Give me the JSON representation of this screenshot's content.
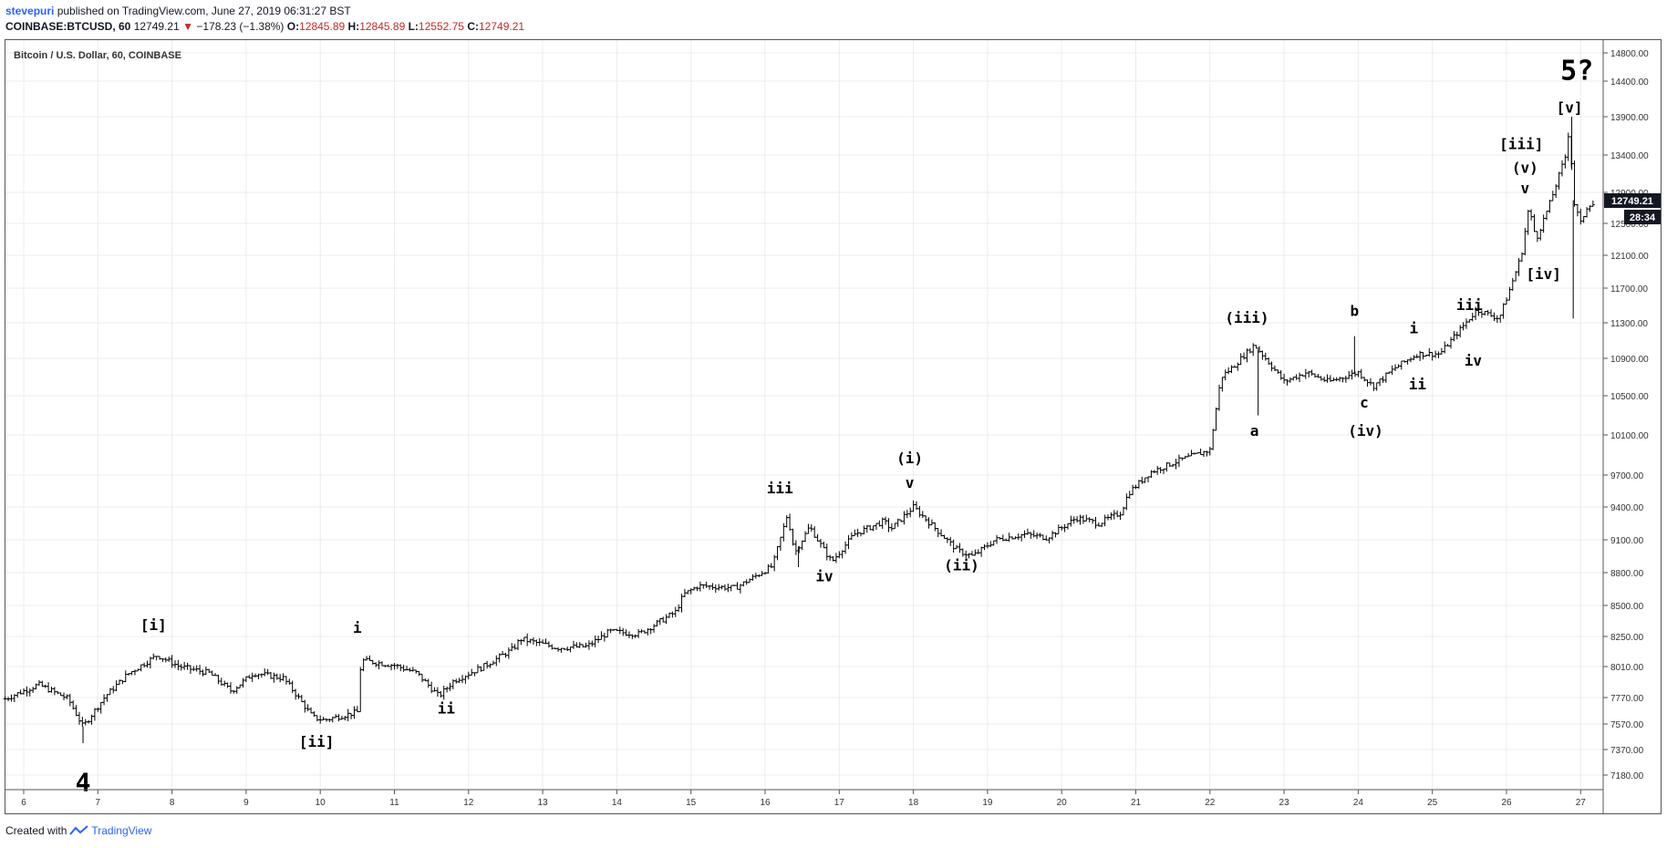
{
  "header": {
    "author": "stevepuri",
    "published": "published on TradingView.com, June 27, 2019 06:31:27 BST",
    "symbol": "COINBASE:BTCUSD, 60",
    "last": "12749.21",
    "change": "−178.23 (−1.38%)",
    "open_label": "O:",
    "open": "12845.89",
    "high_label": "H:",
    "high": "12845.89",
    "low_label": "L:",
    "low": "12552.75",
    "close_label": "C:",
    "close": "12749.21"
  },
  "footer": {
    "created_with": "Created with",
    "brand": "TradingView"
  },
  "colors": {
    "up_down_arrow": "#c62828",
    "bars": "#000000",
    "grid": "#e6e6e6",
    "accent": "#2962ff"
  },
  "chart_data": {
    "type": "ohlc",
    "title": "Bitcoin / U.S. Dollar, 60, COINBASE",
    "price_tag": "12749.21",
    "countdown": "28:34",
    "y_ticks": [
      7180,
      7370,
      7570,
      7770,
      8010,
      8250,
      8500,
      8800,
      9100,
      9400,
      9700,
      10100,
      10500,
      10900,
      11300,
      11700,
      12100,
      12500,
      12900,
      13400,
      13900,
      14400,
      14800
    ],
    "y_tick_labels": [
      "7180.00",
      "7370.00",
      "7570.00",
      "7770.00",
      "8010.00",
      "8250.00",
      "8500.00",
      "8800.00",
      "9100.00",
      "9400.00",
      "9700.00",
      "10100.00",
      "10500.00",
      "10900.00",
      "11300.00",
      "11700.00",
      "12100.00",
      "12500.00",
      "12900.00",
      "13400.00",
      "13900.00",
      "14400.00",
      "14800.00"
    ],
    "x_ticks": [
      6,
      7,
      8,
      9,
      10,
      11,
      12,
      13,
      14,
      15,
      16,
      17,
      18,
      19,
      20,
      21,
      22,
      23,
      24,
      25,
      26,
      27
    ],
    "path": [
      [
        5.75,
        7760
      ],
      [
        6.2,
        7870
      ],
      [
        6.6,
        7760
      ],
      [
        6.8,
        7550
      ],
      [
        7.1,
        7780
      ],
      [
        7.4,
        7950
      ],
      [
        7.8,
        8100
      ],
      [
        8.1,
        8010
      ],
      [
        8.5,
        7960
      ],
      [
        8.8,
        7820
      ],
      [
        9.1,
        7960
      ],
      [
        9.5,
        7920
      ],
      [
        9.6,
        7850
      ],
      [
        9.9,
        7620
      ],
      [
        10.05,
        7600
      ],
      [
        10.5,
        7660
      ],
      [
        10.55,
        8060
      ],
      [
        11.0,
        8020
      ],
      [
        11.3,
        7960
      ],
      [
        11.6,
        7780
      ],
      [
        11.8,
        7900
      ],
      [
        12.2,
        8010
      ],
      [
        12.6,
        8150
      ],
      [
        12.7,
        8230
      ],
      [
        13.2,
        8160
      ],
      [
        13.6,
        8170
      ],
      [
        13.9,
        8290
      ],
      [
        14.3,
        8270
      ],
      [
        14.8,
        8450
      ],
      [
        14.9,
        8600
      ],
      [
        15.1,
        8680
      ],
      [
        15.6,
        8660
      ],
      [
        16.1,
        8860
      ],
      [
        16.3,
        9330
      ],
      [
        16.4,
        8980
      ],
      [
        16.6,
        9220
      ],
      [
        16.8,
        9000
      ],
      [
        16.9,
        8900
      ],
      [
        17.2,
        9150
      ],
      [
        17.6,
        9270
      ],
      [
        17.7,
        9200
      ],
      [
        18.0,
        9400
      ],
      [
        18.3,
        9200
      ],
      [
        18.6,
        9000
      ],
      [
        18.8,
        8950
      ],
      [
        19.1,
        9100
      ],
      [
        19.5,
        9150
      ],
      [
        19.8,
        9120
      ],
      [
        20.2,
        9300
      ],
      [
        20.5,
        9250
      ],
      [
        20.8,
        9350
      ],
      [
        20.9,
        9530
      ],
      [
        21.2,
        9730
      ],
      [
        21.6,
        9850
      ],
      [
        22.0,
        9950
      ],
      [
        22.15,
        10700
      ],
      [
        22.3,
        10800
      ],
      [
        22.6,
        11050
      ],
      [
        22.75,
        10900
      ],
      [
        23.0,
        10650
      ],
      [
        23.3,
        10750
      ],
      [
        23.6,
        10650
      ],
      [
        24.0,
        10750
      ],
      [
        24.2,
        10600
      ],
      [
        24.5,
        10800
      ],
      [
        24.8,
        10950
      ],
      [
        25.1,
        10950
      ],
      [
        25.5,
        11350
      ],
      [
        25.6,
        11450
      ],
      [
        25.9,
        11350
      ],
      [
        26.05,
        11700
      ],
      [
        26.2,
        12100
      ],
      [
        26.3,
        12700
      ],
      [
        26.4,
        12300
      ],
      [
        26.6,
        12800
      ],
      [
        26.8,
        13400
      ],
      [
        26.85,
        13800
      ],
      [
        26.9,
        12800
      ],
      [
        27.0,
        12500
      ],
      [
        27.1,
        12750
      ],
      [
        27.2,
        12749
      ]
    ],
    "wicks": [
      [
        6.8,
        7420
      ],
      [
        16.45,
        8850
      ],
      [
        22.65,
        10300
      ],
      [
        23.95,
        11150
      ],
      [
        26.9,
        11350
      ],
      [
        26.88,
        13900
      ]
    ],
    "annotations": [
      {
        "text": "4",
        "x": 6.8,
        "price": 7060,
        "size": 28,
        "bold": true
      },
      {
        "text": "[i]",
        "x": 7.75,
        "price": 8300
      },
      {
        "text": "[ii]",
        "x": 9.95,
        "price": 7390
      },
      {
        "text": "i",
        "x": 10.5,
        "price": 8280
      },
      {
        "text": "ii",
        "x": 11.7,
        "price": 7650
      },
      {
        "text": "iii",
        "x": 16.2,
        "price": 9530
      },
      {
        "text": "iv",
        "x": 16.8,
        "price": 8720
      },
      {
        "text": "(i)",
        "x": 17.95,
        "price": 9820
      },
      {
        "text": "v",
        "x": 17.95,
        "price": 9580
      },
      {
        "text": "(ii)",
        "x": 18.65,
        "price": 8820
      },
      {
        "text": "(iii)",
        "x": 22.5,
        "price": 11300
      },
      {
        "text": "a",
        "x": 22.6,
        "price": 10090
      },
      {
        "text": "b",
        "x": 23.95,
        "price": 11380
      },
      {
        "text": "c",
        "x": 24.08,
        "price": 10380
      },
      {
        "text": "(iv)",
        "x": 24.1,
        "price": 10090
      },
      {
        "text": "i",
        "x": 24.75,
        "price": 11180
      },
      {
        "text": "ii",
        "x": 24.8,
        "price": 10570
      },
      {
        "text": "iii",
        "x": 25.5,
        "price": 11450
      },
      {
        "text": "iv",
        "x": 25.55,
        "price": 10820
      },
      {
        "text": "[iii]",
        "x": 26.2,
        "price": 13480
      },
      {
        "text": "(v)",
        "x": 26.25,
        "price": 13160
      },
      {
        "text": "v",
        "x": 26.25,
        "price": 12890
      },
      {
        "text": "[iv]",
        "x": 26.5,
        "price": 11810
      },
      {
        "text": "[v]",
        "x": 26.85,
        "price": 13960
      },
      {
        "text": "5?",
        "x": 26.95,
        "price": 14420,
        "size": 30,
        "bold": true
      }
    ]
  }
}
